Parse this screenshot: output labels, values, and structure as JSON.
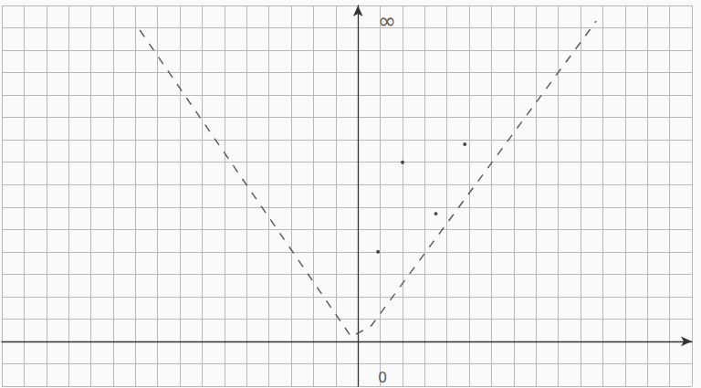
{
  "chart_data": {
    "type": "scatter",
    "xlim": [
      -16,
      15
    ],
    "ylim": [
      -2,
      15
    ],
    "xticks": [
      -16,
      -15,
      -14,
      -13,
      -12,
      -11,
      -10,
      -9,
      -8,
      -7,
      -6,
      -5,
      -4,
      -3,
      -2,
      -1,
      0,
      1,
      2,
      3,
      4,
      5,
      6,
      7,
      8,
      9,
      10,
      11,
      12,
      13,
      14,
      15
    ],
    "yticks": [
      -2,
      -1,
      0,
      1,
      2,
      3,
      4,
      5,
      6,
      7,
      8,
      9,
      10,
      11,
      12,
      13,
      14,
      15
    ],
    "grid": true,
    "tick_labels": false,
    "series": [
      {
        "type": "line",
        "line_style": "dashed",
        "color": "#555555",
        "x": [
          -9.8,
          -0.3,
          0.6,
          10.7
        ],
        "values": [
          13.9,
          0.2,
          0.7,
          14.3
        ]
      },
      {
        "type": "scatter",
        "marker": "circle",
        "color": "#222222",
        "x": [
          0.9,
          2.0,
          3.5,
          4.8
        ],
        "values": [
          4.0,
          8.0,
          5.7,
          8.8
        ]
      }
    ],
    "annotations": [
      {
        "text": "∞",
        "x": 1.3,
        "y": 14.3
      },
      {
        "text": "0",
        "x": 1.1,
        "y": -1.6
      }
    ]
  }
}
